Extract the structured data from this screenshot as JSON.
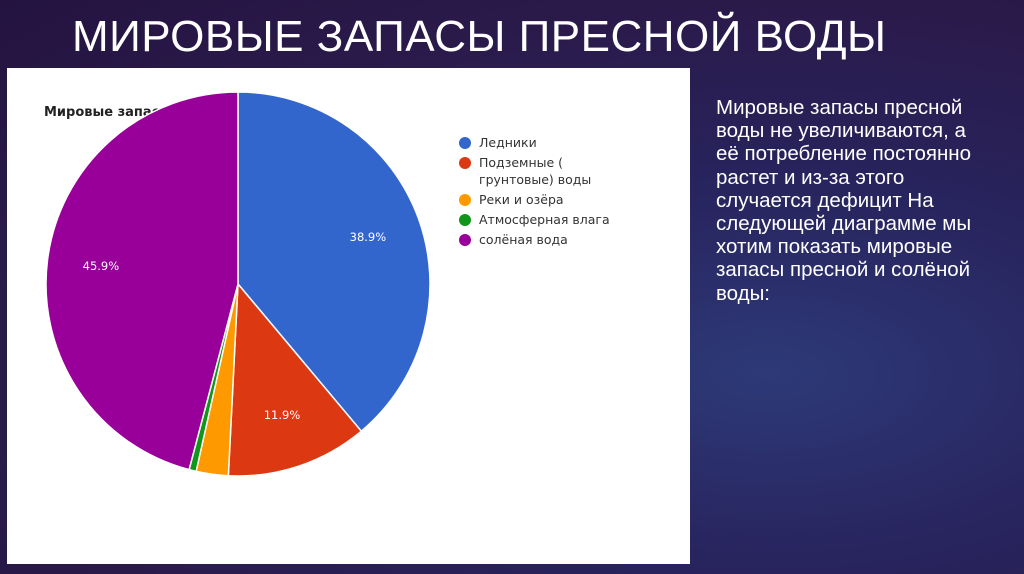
{
  "slide": {
    "title": "МИРОВЫЕ ЗАПАСЫ ПРЕСНОЙ ВОДЫ",
    "body_text": "Мировые запасы пресной воды не увеличиваются, а её потребление постоянно растет и  из-за этого случается дефицит На следующей диаграмме мы хотим показать мировые запасы пресной и солёной воды:"
  },
  "chart_data": {
    "type": "pie",
    "title": "Мировые запасы пресной воды",
    "legend_position": "top-right",
    "slices": [
      {
        "name": "Ледники",
        "value": 38.9,
        "label": "38.9%",
        "color": "#3366cc"
      },
      {
        "name": "Подземные ( грунтовые) воды",
        "value": 11.9,
        "label": "11.9%",
        "color": "#dc3912"
      },
      {
        "name": "Реки и озёра",
        "value": 2.7,
        "label": "",
        "color": "#ff9900"
      },
      {
        "name": "Атмосферная влага",
        "value": 0.6,
        "label": "",
        "color": "#109618"
      },
      {
        "name": "солёная вода",
        "value": 45.9,
        "label": "45.9%",
        "color": "#990099"
      }
    ]
  }
}
